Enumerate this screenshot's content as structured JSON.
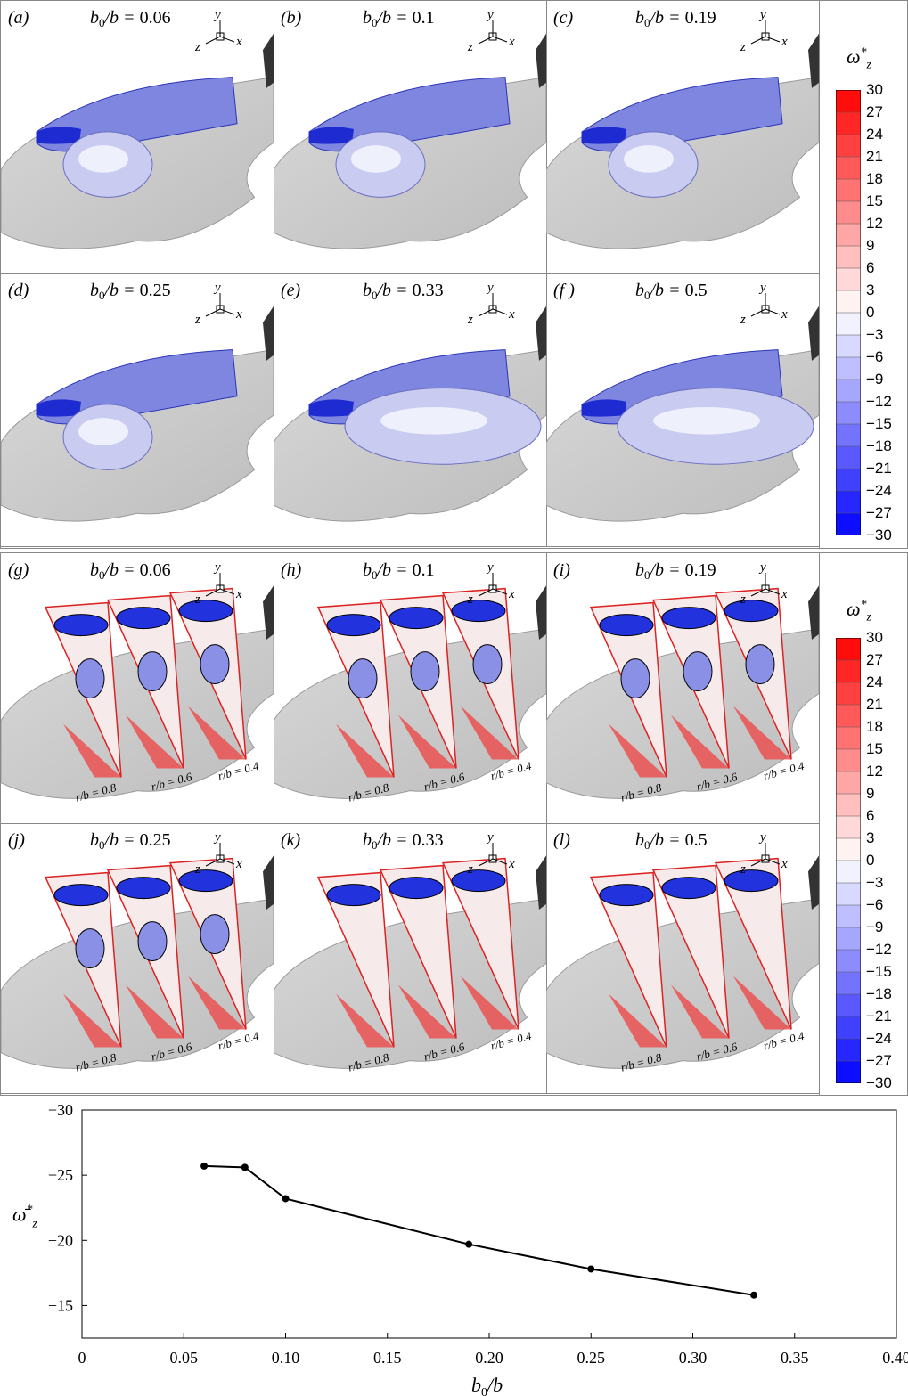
{
  "top_panels": [
    {
      "label": "(a)",
      "ratio": "0.06"
    },
    {
      "label": "(b)",
      "ratio": "0.1"
    },
    {
      "label": "(c)",
      "ratio": "0.19"
    },
    {
      "label": "(d)",
      "ratio": "0.25"
    },
    {
      "label": "(e)",
      "ratio": "0.33"
    },
    {
      "label": "(f )",
      "ratio": "0.5"
    }
  ],
  "mid_panels": [
    {
      "label": "(g)",
      "ratio": "0.06"
    },
    {
      "label": "(h)",
      "ratio": "0.1"
    },
    {
      "label": "(i)",
      "ratio": "0.19"
    },
    {
      "label": "(j)",
      "ratio": "0.25"
    },
    {
      "label": "(k)",
      "ratio": "0.33"
    },
    {
      "label": "(l)",
      "ratio": "0.5"
    }
  ],
  "title_prefix": "b",
  "title_sub": "0",
  "title_suffix": "/b = ",
  "axis_letters": {
    "x": "x",
    "y": "y",
    "z": "z"
  },
  "slice_labels": [
    "r/b = 0.8",
    "r/b = 0.6",
    "r/b = 0.4"
  ],
  "colorbar": {
    "title": "ω*z",
    "ticks": [
      "30",
      "27",
      "24",
      "21",
      "18",
      "15",
      "12",
      "9",
      "6",
      "3",
      "0",
      "−3",
      "−6",
      "−9",
      "−12",
      "−15",
      "−18",
      "−21",
      "−24",
      "−27",
      "−30"
    ],
    "max_color": "#e00000",
    "min_color": "#0000e0"
  },
  "chart_data": {
    "type": "line",
    "x": [
      0.06,
      0.08,
      0.1,
      0.19,
      0.25,
      0.33
    ],
    "y": [
      -25.7,
      -25.6,
      -23.2,
      -19.7,
      -17.8,
      -15.8
    ],
    "xlabel": "b0/b",
    "ylabel": "ω̄*z",
    "xlim": [
      0,
      0.4
    ],
    "ylim": [
      -12.5,
      -30
    ],
    "xticks": [
      "0",
      "0.05",
      "0.10",
      "0.15",
      "0.20",
      "0.25",
      "0.30",
      "0.35",
      "0.40"
    ],
    "yticks": [
      "−30",
      "−25",
      "−20",
      "−15"
    ],
    "ytick_values": [
      -30,
      -25,
      -20,
      -15
    ],
    "color": "#000000"
  }
}
